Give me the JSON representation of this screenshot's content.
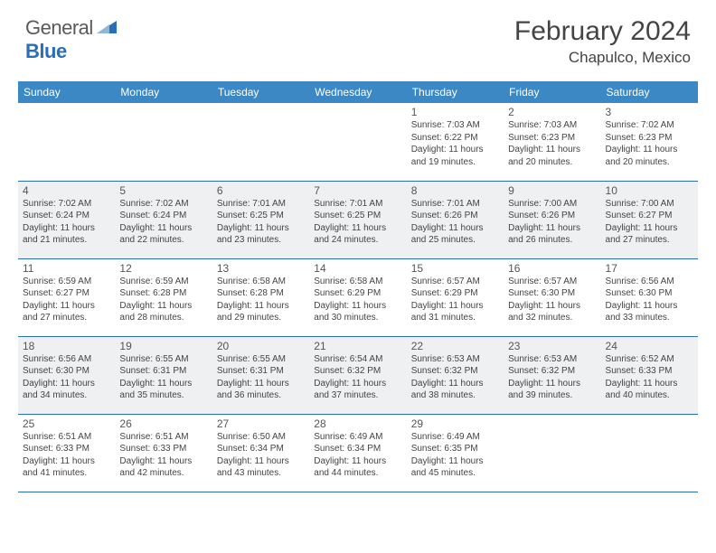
{
  "brand": {
    "name_a": "General",
    "name_b": "Blue"
  },
  "title": "February 2024",
  "location": "Chapulco, Mexico",
  "colors": {
    "header_blue": "#3b88c4",
    "rule_blue": "#2a6fb5",
    "alt_row_bg": "#eef0f1",
    "page_bg": "#ffffff",
    "text": "#444444"
  },
  "day_headers": [
    "Sunday",
    "Monday",
    "Tuesday",
    "Wednesday",
    "Thursday",
    "Friday",
    "Saturday"
  ],
  "weeks": [
    {
      "alt": false,
      "cells": [
        null,
        null,
        null,
        null,
        {
          "n": "1",
          "sunrise": "7:03 AM",
          "sunset": "6:22 PM",
          "daylight": "11 hours and 19 minutes."
        },
        {
          "n": "2",
          "sunrise": "7:03 AM",
          "sunset": "6:23 PM",
          "daylight": "11 hours and 20 minutes."
        },
        {
          "n": "3",
          "sunrise": "7:02 AM",
          "sunset": "6:23 PM",
          "daylight": "11 hours and 20 minutes."
        }
      ]
    },
    {
      "alt": true,
      "cells": [
        {
          "n": "4",
          "sunrise": "7:02 AM",
          "sunset": "6:24 PM",
          "daylight": "11 hours and 21 minutes."
        },
        {
          "n": "5",
          "sunrise": "7:02 AM",
          "sunset": "6:24 PM",
          "daylight": "11 hours and 22 minutes."
        },
        {
          "n": "6",
          "sunrise": "7:01 AM",
          "sunset": "6:25 PM",
          "daylight": "11 hours and 23 minutes."
        },
        {
          "n": "7",
          "sunrise": "7:01 AM",
          "sunset": "6:25 PM",
          "daylight": "11 hours and 24 minutes."
        },
        {
          "n": "8",
          "sunrise": "7:01 AM",
          "sunset": "6:26 PM",
          "daylight": "11 hours and 25 minutes."
        },
        {
          "n": "9",
          "sunrise": "7:00 AM",
          "sunset": "6:26 PM",
          "daylight": "11 hours and 26 minutes."
        },
        {
          "n": "10",
          "sunrise": "7:00 AM",
          "sunset": "6:27 PM",
          "daylight": "11 hours and 27 minutes."
        }
      ]
    },
    {
      "alt": false,
      "cells": [
        {
          "n": "11",
          "sunrise": "6:59 AM",
          "sunset": "6:27 PM",
          "daylight": "11 hours and 27 minutes."
        },
        {
          "n": "12",
          "sunrise": "6:59 AM",
          "sunset": "6:28 PM",
          "daylight": "11 hours and 28 minutes."
        },
        {
          "n": "13",
          "sunrise": "6:58 AM",
          "sunset": "6:28 PM",
          "daylight": "11 hours and 29 minutes."
        },
        {
          "n": "14",
          "sunrise": "6:58 AM",
          "sunset": "6:29 PM",
          "daylight": "11 hours and 30 minutes."
        },
        {
          "n": "15",
          "sunrise": "6:57 AM",
          "sunset": "6:29 PM",
          "daylight": "11 hours and 31 minutes."
        },
        {
          "n": "16",
          "sunrise": "6:57 AM",
          "sunset": "6:30 PM",
          "daylight": "11 hours and 32 minutes."
        },
        {
          "n": "17",
          "sunrise": "6:56 AM",
          "sunset": "6:30 PM",
          "daylight": "11 hours and 33 minutes."
        }
      ]
    },
    {
      "alt": true,
      "cells": [
        {
          "n": "18",
          "sunrise": "6:56 AM",
          "sunset": "6:30 PM",
          "daylight": "11 hours and 34 minutes."
        },
        {
          "n": "19",
          "sunrise": "6:55 AM",
          "sunset": "6:31 PM",
          "daylight": "11 hours and 35 minutes."
        },
        {
          "n": "20",
          "sunrise": "6:55 AM",
          "sunset": "6:31 PM",
          "daylight": "11 hours and 36 minutes."
        },
        {
          "n": "21",
          "sunrise": "6:54 AM",
          "sunset": "6:32 PM",
          "daylight": "11 hours and 37 minutes."
        },
        {
          "n": "22",
          "sunrise": "6:53 AM",
          "sunset": "6:32 PM",
          "daylight": "11 hours and 38 minutes."
        },
        {
          "n": "23",
          "sunrise": "6:53 AM",
          "sunset": "6:32 PM",
          "daylight": "11 hours and 39 minutes."
        },
        {
          "n": "24",
          "sunrise": "6:52 AM",
          "sunset": "6:33 PM",
          "daylight": "11 hours and 40 minutes."
        }
      ]
    },
    {
      "alt": false,
      "cells": [
        {
          "n": "25",
          "sunrise": "6:51 AM",
          "sunset": "6:33 PM",
          "daylight": "11 hours and 41 minutes."
        },
        {
          "n": "26",
          "sunrise": "6:51 AM",
          "sunset": "6:33 PM",
          "daylight": "11 hours and 42 minutes."
        },
        {
          "n": "27",
          "sunrise": "6:50 AM",
          "sunset": "6:34 PM",
          "daylight": "11 hours and 43 minutes."
        },
        {
          "n": "28",
          "sunrise": "6:49 AM",
          "sunset": "6:34 PM",
          "daylight": "11 hours and 44 minutes."
        },
        {
          "n": "29",
          "sunrise": "6:49 AM",
          "sunset": "6:35 PM",
          "daylight": "11 hours and 45 minutes."
        },
        null,
        null
      ]
    }
  ],
  "labels": {
    "sunrise": "Sunrise:",
    "sunset": "Sunset:",
    "daylight": "Daylight:"
  }
}
